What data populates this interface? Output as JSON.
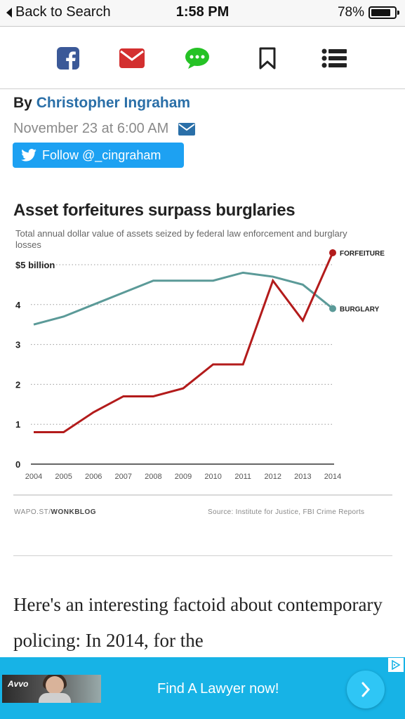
{
  "status_bar": {
    "back_label": "Back to Search",
    "time": "1:58 PM",
    "battery": "78%"
  },
  "toolbar": {
    "icons": [
      "facebook-icon",
      "email-icon",
      "comments-icon",
      "bookmark-icon",
      "list-icon"
    ],
    "colors": {
      "facebook": "#3b5998",
      "email": "#d32f2f",
      "comments": "#25c225",
      "bookmark": "#222222",
      "list": "#222222"
    }
  },
  "article": {
    "byline_prefix": "By",
    "author": "Christopher Ingraham",
    "date": "November 23 at 6:00 AM",
    "follow_label": "Follow @_cingraham",
    "body": "Here's an interesting factoid about contemporary policing: In 2014, for the"
  },
  "chart_data": {
    "type": "line",
    "title": "Asset forfeitures surpass burglaries",
    "subtitle": "Total annual dollar value of assets seized by federal law enforcement and burglary losses",
    "x": [
      "2004",
      "2005",
      "2006",
      "2007",
      "2008",
      "2009",
      "2010",
      "2011",
      "2012",
      "2013",
      "2014"
    ],
    "y_ticks": [
      "0",
      "1",
      "2",
      "3",
      "4",
      "$5 billion"
    ],
    "ylim": [
      0,
      5
    ],
    "grid": "dotted horizontal",
    "series": [
      {
        "name": "FORFEITURE",
        "color": "#b31b1b",
        "values": [
          0.8,
          0.8,
          1.3,
          1.7,
          1.7,
          1.9,
          2.5,
          2.5,
          4.6,
          3.6,
          5.3
        ]
      },
      {
        "name": "BURGLARY",
        "color": "#5b9a98",
        "values": [
          3.5,
          3.7,
          4.0,
          4.3,
          4.6,
          4.6,
          4.6,
          4.8,
          4.7,
          4.5,
          3.9
        ]
      }
    ],
    "credit_prefix": "WAPO.ST/",
    "credit_brand": "WONKBLOG",
    "source": "Source: Institute for Justice, FBI Crime Reports"
  },
  "ad": {
    "logo": "Avvo",
    "text": "Find A Lawyer now!"
  }
}
